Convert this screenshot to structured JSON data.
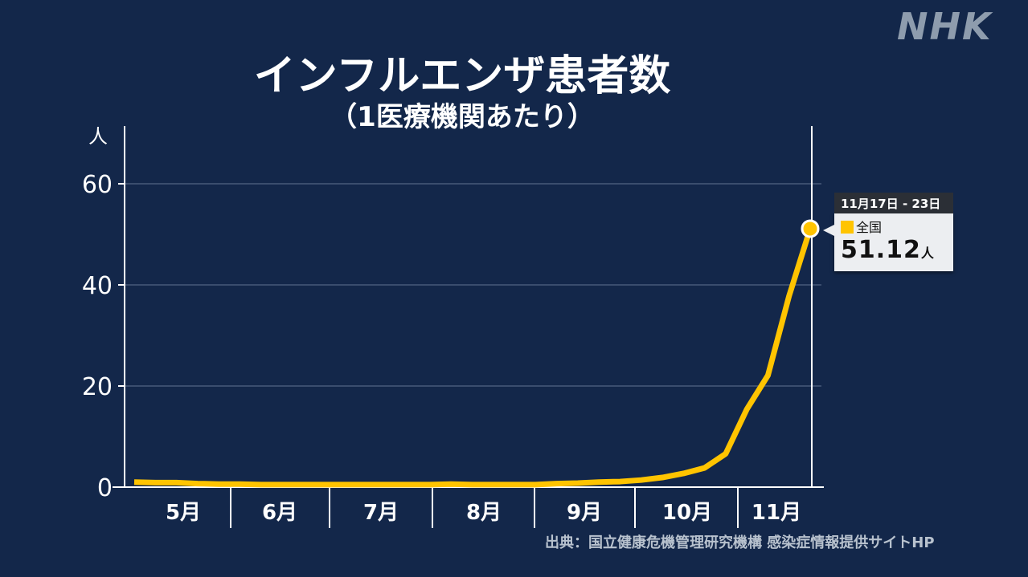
{
  "brand": {
    "logo": "NHK"
  },
  "header": {
    "title": "インフルエンザ患者数",
    "subtitle": "（1医療機関あたり）"
  },
  "tooltip": {
    "period": "11月17日 - 23日",
    "series_label": "全国",
    "value": "51.12",
    "unit": "人"
  },
  "source": "出典：国立健康危機管理研究機構 感染症情報提供サイトHP",
  "colors": {
    "background": "#13274a",
    "line": "#ffc400",
    "text": "#ffffff"
  },
  "chart_data": {
    "type": "line",
    "title": "インフルエンザ患者数",
    "subtitle": "（1医療機関あたり）",
    "ylabel": "人",
    "xlabel": "",
    "ylim": [
      0,
      70
    ],
    "yticks": [
      0,
      20,
      40,
      60
    ],
    "grid": true,
    "month_labels": [
      "5月",
      "6月",
      "7月",
      "8月",
      "9月",
      "10月",
      "11月"
    ],
    "series": [
      {
        "name": "全国",
        "values": [
          1.0,
          0.9,
          0.9,
          0.7,
          0.6,
          0.6,
          0.5,
          0.5,
          0.5,
          0.5,
          0.5,
          0.5,
          0.5,
          0.5,
          0.5,
          0.6,
          0.5,
          0.5,
          0.5,
          0.5,
          0.7,
          0.8,
          1.0,
          1.1,
          1.4,
          1.9,
          2.7,
          3.8,
          6.6,
          15.4,
          22.1,
          37.8,
          51.12
        ]
      }
    ],
    "last_point": {
      "label": "11月17日 - 23日",
      "value": 51.12
    }
  }
}
